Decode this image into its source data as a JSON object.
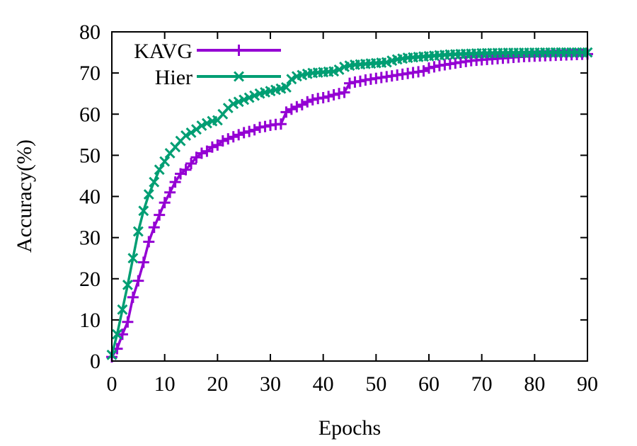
{
  "chart_data": {
    "type": "line",
    "xlabel": "Epochs",
    "ylabel": "Accuracy(%)",
    "xlim": [
      0,
      90
    ],
    "ylim": [
      0,
      80
    ],
    "xticks": [
      "0",
      "10",
      "20",
      "30",
      "40",
      "50",
      "60",
      "70",
      "80",
      "90"
    ],
    "yticks": [
      "0",
      "10",
      "20",
      "30",
      "40",
      "50",
      "60",
      "70",
      "80"
    ],
    "grid": false,
    "legend_position": "top-left",
    "series": [
      {
        "name": "KAVG",
        "color": "#9400d3",
        "marker": "plus",
        "x": [
          0,
          1,
          2,
          3,
          4,
          5,
          6,
          7,
          8,
          9,
          10,
          11,
          12,
          13,
          14,
          15,
          16,
          17,
          18,
          19,
          20,
          21,
          22,
          23,
          24,
          25,
          26,
          27,
          28,
          29,
          30,
          31,
          32,
          33,
          34,
          35,
          36,
          37,
          38,
          39,
          40,
          41,
          42,
          43,
          44,
          45,
          46,
          47,
          48,
          49,
          50,
          51,
          52,
          53,
          54,
          55,
          56,
          57,
          58,
          59,
          60,
          61,
          62,
          63,
          64,
          65,
          66,
          67,
          68,
          69,
          70,
          71,
          72,
          73,
          74,
          75,
          76,
          77,
          78,
          79,
          80,
          81,
          82,
          83,
          84,
          85,
          86,
          87,
          88,
          89,
          90
        ],
        "y": [
          1,
          3,
          6.5,
          9.5,
          15.5,
          19.5,
          24,
          29,
          32.5,
          35.5,
          38.5,
          41,
          43.5,
          45.5,
          46.5,
          48,
          49.5,
          50.5,
          51,
          52,
          52.5,
          53.5,
          54,
          54.5,
          55,
          55.5,
          55.8,
          56.2,
          56.8,
          57,
          57.3,
          57.5,
          57.6,
          60.5,
          61.2,
          61.8,
          62.3,
          63,
          63.5,
          63.8,
          64,
          64.3,
          64.7,
          65,
          65.3,
          67.5,
          67.8,
          68,
          68.3,
          68.5,
          68.7,
          68.9,
          69.1,
          69.3,
          69.5,
          69.7,
          69.9,
          70.1,
          70.3,
          70.5,
          71.2,
          71.5,
          71.8,
          72,
          72.2,
          72.4,
          72.6,
          72.8,
          73,
          73.1,
          73.2,
          73.3,
          73.4,
          73.5,
          73.6,
          73.7,
          73.8,
          73.9,
          74,
          74.05,
          74.1,
          74.15,
          74.2,
          74.25,
          74.3,
          74.35,
          74.4,
          74.45,
          74.5,
          74.55,
          74.6
        ]
      },
      {
        "name": "Hier",
        "color": "#009e73",
        "marker": "cross",
        "x": [
          0,
          1,
          2,
          3,
          4,
          5,
          6,
          7,
          8,
          9,
          10,
          11,
          12,
          13,
          14,
          15,
          16,
          17,
          18,
          19,
          20,
          21,
          22,
          23,
          24,
          25,
          26,
          27,
          28,
          29,
          30,
          31,
          32,
          33,
          34,
          35,
          36,
          37,
          38,
          39,
          40,
          41,
          42,
          43,
          44,
          45,
          46,
          47,
          48,
          49,
          50,
          51,
          52,
          53,
          54,
          55,
          56,
          57,
          58,
          59,
          60,
          61,
          62,
          63,
          64,
          65,
          66,
          67,
          68,
          69,
          70,
          71,
          72,
          73,
          74,
          75,
          76,
          77,
          78,
          79,
          80,
          81,
          82,
          83,
          84,
          85,
          86,
          87,
          88,
          89,
          90
        ],
        "y": [
          1.5,
          6.5,
          12.5,
          18.5,
          25,
          31.5,
          36.5,
          40.5,
          43.5,
          46.5,
          48.5,
          50.5,
          52,
          53.5,
          54.8,
          55.5,
          56.3,
          57.2,
          57.8,
          58.3,
          58.5,
          60,
          61.5,
          62.5,
          63,
          63.5,
          64,
          64.5,
          65,
          65.3,
          65.6,
          65.9,
          66.2,
          66.5,
          68.5,
          69.2,
          69.5,
          69.8,
          70,
          70.1,
          70.2,
          70.3,
          70.4,
          70.8,
          71.5,
          71.8,
          72,
          72.1,
          72.2,
          72.3,
          72.4,
          72.5,
          72.6,
          73,
          73.3,
          73.5,
          73.7,
          73.8,
          73.9,
          74,
          74.1,
          74.2,
          74.3,
          74.4,
          74.5,
          74.55,
          74.6,
          74.65,
          74.7,
          74.75,
          74.8,
          74.82,
          74.84,
          74.86,
          74.88,
          74.9,
          74.91,
          74.92,
          74.93,
          74.94,
          74.95,
          74.96,
          74.97,
          74.98,
          74.99,
          75,
          75,
          75,
          75,
          75,
          75
        ]
      }
    ]
  }
}
